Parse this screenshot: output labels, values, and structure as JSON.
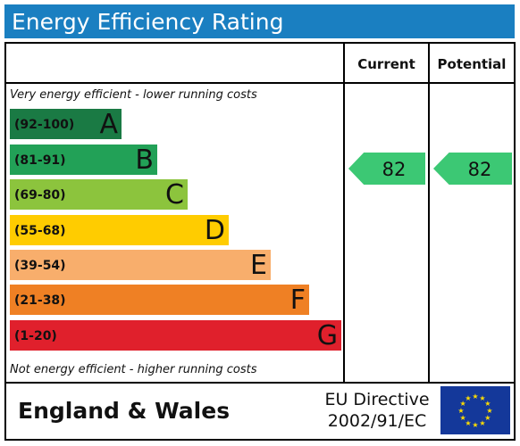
{
  "title": "Energy Efficiency Rating",
  "headers": {
    "current": "Current",
    "potential": "Potential"
  },
  "notes": {
    "top": "Very energy efficient - lower running costs",
    "bottom": "Not energy efficient - higher running costs"
  },
  "chart_data": {
    "type": "bar",
    "title": "Energy Efficiency Rating",
    "bands": [
      {
        "range": "(92-100)",
        "letter": "A",
        "min": 92,
        "max": 100,
        "color": "#1a7a44"
      },
      {
        "range": "(81-91)",
        "letter": "B",
        "min": 81,
        "max": 91,
        "color": "#22a157"
      },
      {
        "range": "(69-80)",
        "letter": "C",
        "min": 69,
        "max": 80,
        "color": "#8cc43d"
      },
      {
        "range": "(55-68)",
        "letter": "D",
        "min": 55,
        "max": 68,
        "color": "#ffcc00"
      },
      {
        "range": "(39-54)",
        "letter": "E",
        "min": 39,
        "max": 54,
        "color": "#f8ae6c"
      },
      {
        "range": "(21-38)",
        "letter": "F",
        "min": 21,
        "max": 38,
        "color": "#ef8024"
      },
      {
        "range": "(1-20)",
        "letter": "G",
        "min": 1,
        "max": 20,
        "color": "#e0202c"
      }
    ],
    "current": {
      "value": 82,
      "band": "B",
      "color": "#3cc874"
    },
    "potential": {
      "value": 82,
      "band": "B",
      "color": "#3cc874"
    }
  },
  "footer": {
    "country": "England & Wales",
    "directive_line1": "EU Directive",
    "directive_line2": "2002/91/EC",
    "flag_icon": "eu-flag-icon"
  }
}
